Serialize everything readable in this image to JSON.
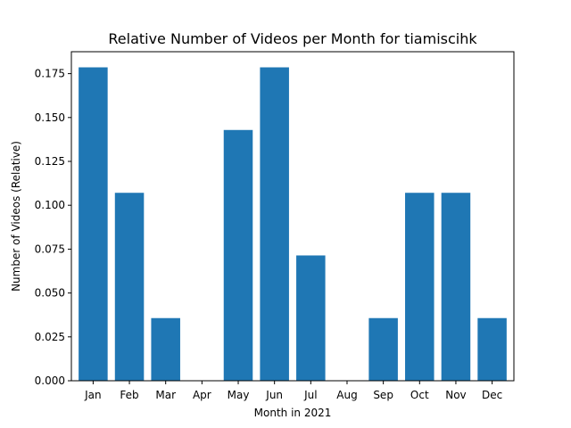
{
  "chart_data": {
    "type": "bar",
    "title": "Relative Number of Videos per Month for tiamiscihk",
    "xlabel": "Month in 2021",
    "ylabel": "Number of Videos (Relative)",
    "categories": [
      "Jan",
      "Feb",
      "Mar",
      "Apr",
      "May",
      "Jun",
      "Jul",
      "Aug",
      "Sep",
      "Oct",
      "Nov",
      "Dec"
    ],
    "values": [
      0.1786,
      0.1071,
      0.0357,
      0.0,
      0.1429,
      0.1786,
      0.0714,
      0.0,
      0.0357,
      0.1071,
      0.1071,
      0.0357
    ],
    "ylim": [
      0,
      0.1875
    ],
    "yticks": [
      0.0,
      0.025,
      0.05,
      0.075,
      0.1,
      0.125,
      0.15,
      0.175
    ],
    "ytick_labels": [
      "0.000",
      "0.025",
      "0.050",
      "0.075",
      "0.100",
      "0.125",
      "0.150",
      "0.175"
    ],
    "grid": false,
    "legend": "none",
    "bar_color": "#1f77b4"
  }
}
